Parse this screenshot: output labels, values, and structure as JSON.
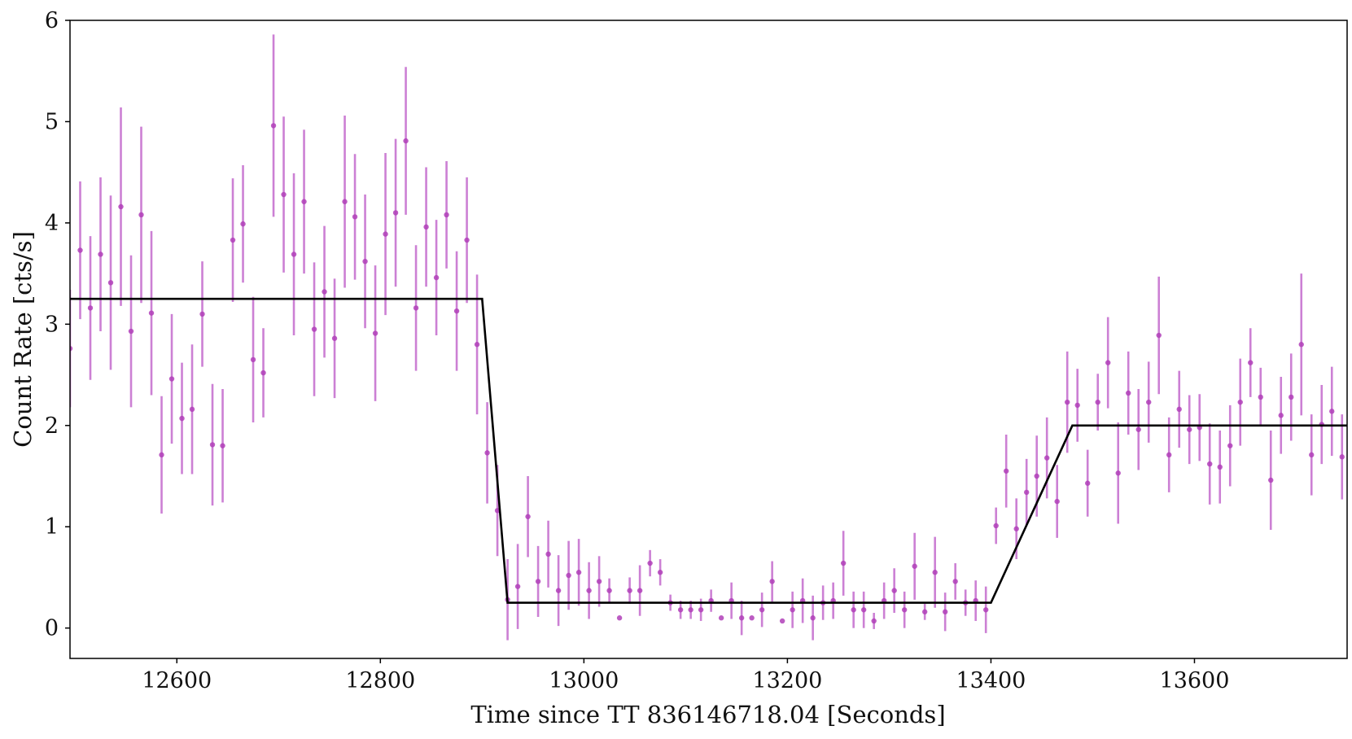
{
  "chart_data": {
    "type": "scatter",
    "xlabel": "Time since TT 836146718.04 [Seconds]",
    "ylabel": "Count Rate [cts/s]",
    "xlim": [
      12495,
      13750
    ],
    "ylim": [
      -0.3,
      6
    ],
    "x_ticks": [
      12600,
      12800,
      13000,
      13200,
      13400,
      13600
    ],
    "y_ticks": [
      0,
      1,
      2,
      3,
      4,
      5,
      6
    ],
    "grid": false,
    "colors": {
      "points": "#b040b8",
      "errorbars": "#cc80d4",
      "model": "#000000"
    },
    "series": [
      {
        "type": "errorbar",
        "x": [
          12495,
          12505,
          12515,
          12525,
          12535,
          12545,
          12555,
          12565,
          12575,
          12585,
          12595,
          12605,
          12615,
          12625,
          12635,
          12645,
          12655,
          12665,
          12675,
          12685,
          12695,
          12705,
          12715,
          12725,
          12735,
          12745,
          12755,
          12765,
          12775,
          12785,
          12795,
          12805,
          12815,
          12825,
          12835,
          12845,
          12855,
          12865,
          12875,
          12885,
          12895,
          12905,
          12915,
          12925,
          12935,
          12945,
          12955,
          12965,
          12975,
          12985,
          12995,
          13005,
          13015,
          13025,
          13035,
          13045,
          13055,
          13065,
          13075,
          13085,
          13095,
          13105,
          13115,
          13125,
          13135,
          13145,
          13155,
          13165,
          13175,
          13185,
          13195,
          13205,
          13215,
          13225,
          13235,
          13245,
          13255,
          13265,
          13275,
          13285,
          13295,
          13305,
          13315,
          13325,
          13335,
          13345,
          13355,
          13365,
          13375,
          13385,
          13395,
          13405,
          13415,
          13425,
          13435,
          13445,
          13455,
          13465,
          13475,
          13485,
          13495,
          13505,
          13515,
          13525,
          13535,
          13545,
          13555,
          13565,
          13575,
          13585,
          13595,
          13605,
          13615,
          13625,
          13635,
          13645,
          13655,
          13665,
          13675,
          13685,
          13695,
          13705,
          13715,
          13725,
          13735,
          13745
        ],
        "y": [
          2.76,
          3.73,
          3.16,
          3.69,
          3.41,
          4.16,
          2.93,
          4.08,
          3.11,
          1.71,
          2.46,
          2.07,
          2.16,
          3.1,
          1.81,
          1.8,
          3.83,
          3.99,
          2.65,
          2.52,
          4.96,
          4.28,
          3.69,
          4.21,
          2.95,
          3.32,
          2.86,
          4.21,
          4.06,
          3.62,
          2.91,
          3.89,
          4.1,
          4.81,
          3.16,
          3.96,
          3.46,
          4.08,
          3.13,
          3.83,
          2.8,
          1.73,
          1.16,
          0.28,
          0.41,
          1.1,
          0.46,
          0.73,
          0.37,
          0.52,
          0.55,
          0.37,
          0.46,
          0.37,
          0.1,
          0.37,
          0.37,
          0.64,
          0.55,
          0.25,
          0.18,
          0.18,
          0.18,
          0.27,
          0.1,
          0.27,
          0.1,
          0.1,
          0.18,
          0.46,
          0.07,
          0.18,
          0.27,
          0.1,
          0.25,
          0.27,
          0.64,
          0.18,
          0.18,
          0.07,
          0.27,
          0.37,
          0.18,
          0.61,
          0.16,
          0.55,
          0.16,
          0.46,
          0.25,
          0.27,
          0.18,
          1.01,
          1.55,
          0.98,
          1.34,
          1.5,
          1.68,
          1.25,
          2.23,
          2.2,
          1.43,
          2.23,
          2.62,
          1.53,
          2.32,
          1.96,
          2.23,
          2.89,
          1.71,
          2.16,
          1.96,
          1.98,
          1.62,
          1.59,
          1.8,
          2.23,
          2.62,
          2.28,
          1.46,
          2.1,
          2.28,
          2.8,
          1.71,
          2.01,
          2.14,
          1.69
        ],
        "yerr": [
          0.58,
          0.68,
          0.71,
          0.76,
          0.86,
          0.98,
          0.75,
          0.87,
          0.81,
          0.58,
          0.64,
          0.55,
          0.64,
          0.52,
          0.6,
          0.56,
          0.61,
          0.58,
          0.62,
          0.44,
          0.9,
          0.77,
          0.8,
          0.71,
          0.66,
          0.65,
          0.59,
          0.85,
          0.62,
          0.66,
          0.67,
          0.8,
          0.73,
          0.73,
          0.62,
          0.59,
          0.57,
          0.53,
          0.59,
          0.62,
          0.69,
          0.5,
          0.45,
          0.4,
          0.42,
          0.4,
          0.35,
          0.33,
          0.35,
          0.34,
          0.33,
          0.28,
          0.25,
          0.12,
          0.0,
          0.13,
          0.25,
          0.13,
          0.13,
          0.08,
          0.09,
          0.09,
          0.11,
          0.11,
          0.0,
          0.18,
          0.17,
          0.0,
          0.17,
          0.2,
          0.0,
          0.18,
          0.22,
          0.22,
          0.17,
          0.18,
          0.32,
          0.18,
          0.18,
          0.08,
          0.18,
          0.22,
          0.18,
          0.33,
          0.08,
          0.35,
          0.19,
          0.18,
          0.13,
          0.2,
          0.23,
          0.18,
          0.36,
          0.3,
          0.33,
          0.4,
          0.4,
          0.36,
          0.5,
          0.36,
          0.33,
          0.28,
          0.45,
          0.5,
          0.41,
          0.4,
          0.4,
          0.58,
          0.37,
          0.38,
          0.34,
          0.33,
          0.4,
          0.36,
          0.4,
          0.43,
          0.34,
          0.29,
          0.49,
          0.38,
          0.43,
          0.7,
          0.4,
          0.39,
          0.44,
          0.42
        ]
      },
      {
        "type": "line",
        "x": [
          12495,
          12900,
          12925,
          13400,
          13480,
          13750
        ],
        "y": [
          3.25,
          3.25,
          0.25,
          0.25,
          2.0,
          2.0
        ]
      }
    ]
  }
}
